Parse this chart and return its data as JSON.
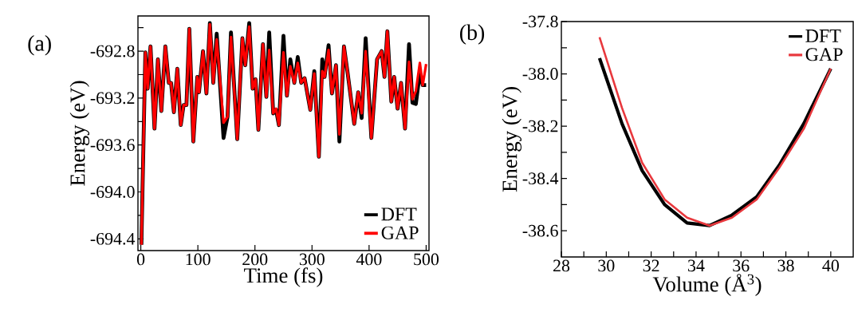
{
  "chart_data": [
    {
      "type": "line",
      "xlabel": "Time (fs)",
      "ylabel": "Energy (eV)",
      "annotations": [
        "(a)"
      ],
      "xlim": [
        -5,
        505
      ],
      "ylim": [
        -694.5,
        -692.5
      ],
      "xticks": [
        0,
        100,
        200,
        300,
        400,
        500
      ],
      "yticks": [
        {
          "value": -692.6,
          "label": null
        },
        -692.8,
        {
          "value": -693.0,
          "label": null
        },
        -693.2,
        {
          "value": -693.4,
          "label": null
        },
        -693.6,
        {
          "value": -693.8,
          "label": null
        },
        {
          "value": -694.0,
          "label": "-694.0"
        },
        {
          "value": -694.2,
          "label": null
        },
        -694.4
      ],
      "legend": "bottom right",
      "grid": false,
      "x": [
        1,
        8,
        12,
        17,
        24,
        30,
        36,
        43,
        49,
        53,
        58,
        64,
        70,
        75,
        80,
        85,
        92,
        99,
        102,
        109,
        115,
        121,
        127,
        133,
        145,
        152,
        158,
        169,
        178,
        183,
        190,
        196,
        201,
        206,
        214,
        220,
        225,
        232,
        237,
        242,
        250,
        256,
        262,
        269,
        275,
        281,
        287,
        297,
        304,
        312,
        318,
        322,
        329,
        335,
        342,
        348,
        356,
        362,
        374,
        381,
        387,
        394,
        404,
        414,
        422,
        427,
        432,
        439,
        444,
        450,
        456,
        463,
        470,
        476,
        482,
        489,
        494,
        500
      ],
      "series": [
        {
          "name": "DFT",
          "color": "#000000",
          "values": [
            -694.45,
            -692.81,
            -693.12,
            -692.76,
            -693.46,
            -692.87,
            -693.31,
            -692.76,
            -693.07,
            -693.07,
            -693.32,
            -692.95,
            -693.43,
            -693.26,
            -693.26,
            -692.61,
            -693.57,
            -693.02,
            -693.15,
            -692.8,
            -693.16,
            -692.56,
            -693.07,
            -692.65,
            -693.54,
            -693.36,
            -692.64,
            -693.55,
            -692.69,
            -692.92,
            -692.56,
            -693.12,
            -693.04,
            -693.47,
            -692.74,
            -693.19,
            -692.64,
            -693.33,
            -693.3,
            -693.43,
            -692.67,
            -693.18,
            -692.87,
            -693.07,
            -692.85,
            -693.07,
            -693.03,
            -693.3,
            -692.97,
            -693.7,
            -692.87,
            -693.02,
            -692.75,
            -693.16,
            -692.92,
            -693.57,
            -692.76,
            -692.97,
            -693.42,
            -693.15,
            -693.37,
            -692.69,
            -693.54,
            -692.87,
            -692.8,
            -693.02,
            -692.63,
            -693.23,
            -693.02,
            -693.29,
            -693.07,
            -693.46,
            -692.74,
            -693.24,
            -693.25,
            -692.98,
            -693.09,
            -693.09
          ]
        },
        {
          "name": "GAP",
          "color": "#ff0000",
          "values": [
            -694.45,
            -692.81,
            -693.12,
            -692.76,
            -693.46,
            -692.87,
            -693.31,
            -692.76,
            -693.07,
            -693.07,
            -693.32,
            -692.95,
            -693.43,
            -693.26,
            -693.26,
            -692.61,
            -693.57,
            -693.02,
            -693.15,
            -692.8,
            -693.16,
            -692.57,
            -693.07,
            -692.7,
            -693.41,
            -693.36,
            -692.68,
            -693.55,
            -692.69,
            -692.92,
            -692.59,
            -693.12,
            -693.04,
            -693.47,
            -692.74,
            -693.19,
            -692.79,
            -693.33,
            -693.29,
            -693.43,
            -692.81,
            -693.18,
            -692.93,
            -693.07,
            -692.9,
            -693.07,
            -693.03,
            -693.3,
            -692.99,
            -693.7,
            -692.97,
            -693.02,
            -692.79,
            -693.16,
            -692.92,
            -693.51,
            -692.76,
            -692.97,
            -693.42,
            -693.15,
            -693.33,
            -692.8,
            -693.54,
            -692.87,
            -692.8,
            -693.02,
            -692.63,
            -693.23,
            -693.02,
            -693.29,
            -693.07,
            -693.46,
            -692.89,
            -693.21,
            -693.14,
            -692.9,
            -693.09,
            -692.91
          ]
        }
      ]
    },
    {
      "type": "line",
      "xlabel": "Volume (Å$^{3}$)",
      "ylabel": "Energy (eV)",
      "annotations": [
        "(b)"
      ],
      "xlim": [
        28,
        41
      ],
      "ylim": [
        -38.7,
        -37.8
      ],
      "xticks": [
        28,
        {
          "value": 29,
          "label": null
        },
        30,
        {
          "value": 31,
          "label": null
        },
        32,
        {
          "value": 33,
          "label": null
        },
        34,
        {
          "value": 35,
          "label": null
        },
        36,
        {
          "value": 37,
          "label": null
        },
        38,
        {
          "value": 39,
          "label": null
        },
        40
      ],
      "yticks": [
        -37.8,
        {
          "value": -37.9,
          "label": null
        },
        {
          "value": -38.0,
          "label": "-38.0"
        },
        {
          "value": -38.1,
          "label": null
        },
        -38.2,
        {
          "value": -38.3,
          "label": null
        },
        -38.4,
        {
          "value": -38.5,
          "label": null
        },
        -38.6
      ],
      "legend": "top right",
      "grid": false,
      "x": [
        29.7,
        30.7,
        31.6,
        32.6,
        33.6,
        34.6,
        35.6,
        36.7,
        37.7,
        38.8,
        40.0
      ],
      "series": [
        {
          "name": "DFT",
          "color": "#000000",
          "values": [
            -37.94,
            -38.19,
            -38.37,
            -38.5,
            -38.57,
            -38.58,
            -38.54,
            -38.47,
            -38.35,
            -38.19,
            -37.98
          ]
        },
        {
          "name": "GAP",
          "color": "#e8383d",
          "values": [
            -37.86,
            -38.13,
            -38.34,
            -38.48,
            -38.55,
            -38.58,
            -38.55,
            -38.48,
            -38.36,
            -38.21,
            -37.98
          ]
        }
      ]
    }
  ]
}
